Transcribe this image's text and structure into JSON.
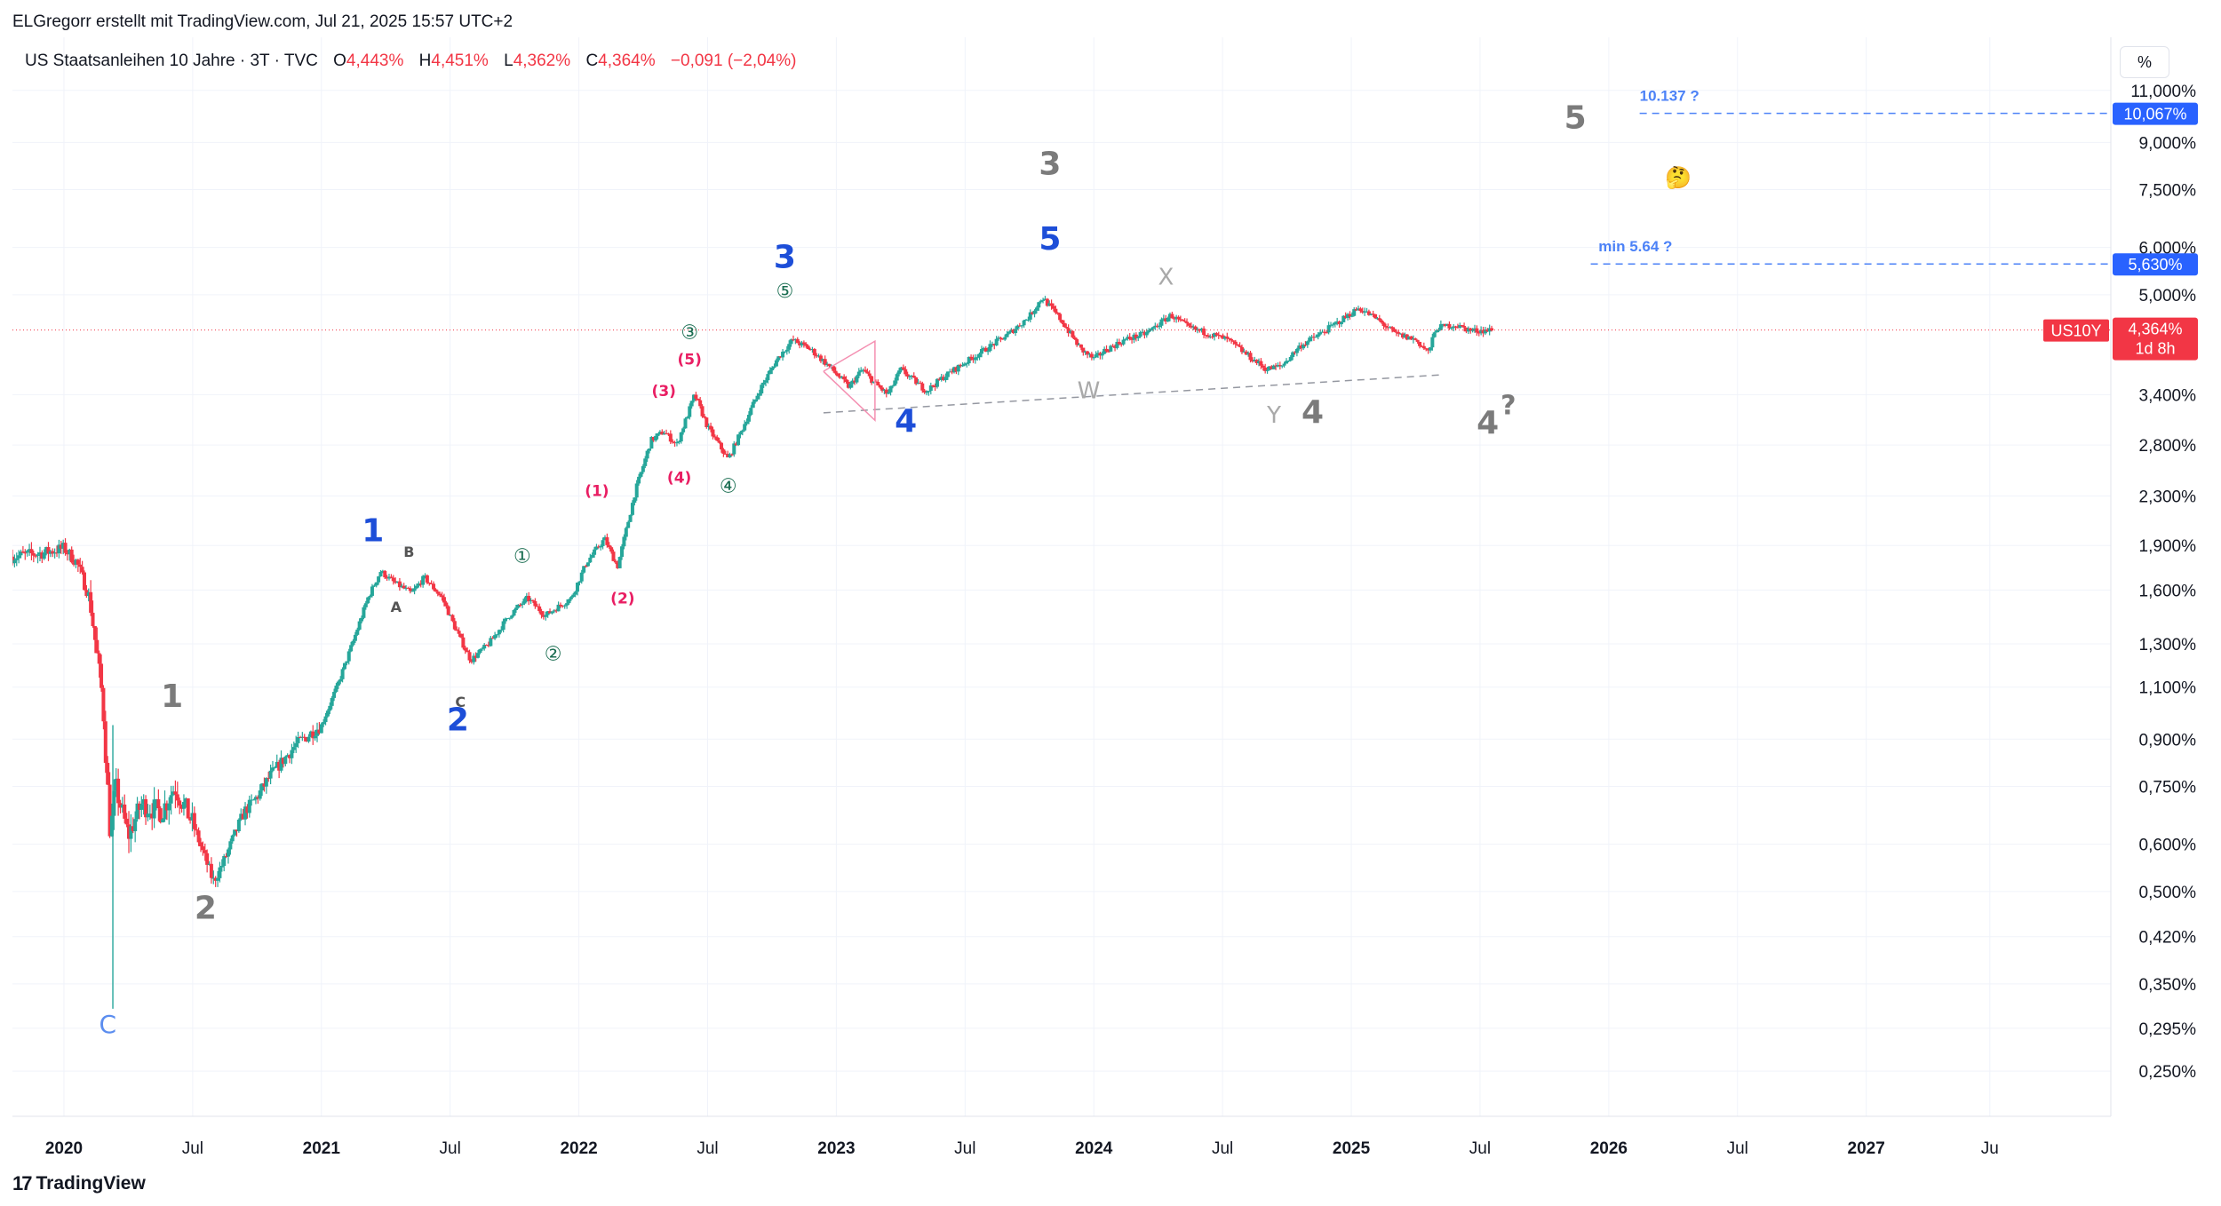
{
  "header": {
    "author_line": "ELGregorr erstellt mit TradingView.com, Jul 21, 2025 15:57 UTC+2"
  },
  "legend": {
    "symbol_title": "US Staatsanleihen 10 Jahre · 3T · TVC",
    "open_label": "O",
    "open_value": "4,443%",
    "high_label": "H",
    "high_value": "4,451%",
    "low_label": "L",
    "low_value": "4,362%",
    "close_label": "C",
    "close_value": "4,364%",
    "change_value": "−0,091 (−2,04%)"
  },
  "scale_button": "%",
  "footer": {
    "brand": "TradingView",
    "logo_glyph": "17"
  },
  "colors": {
    "up": "#26a69a",
    "down": "#f23645",
    "blue_wave": "#1d4ed8",
    "grey_wave": "#7b7b7b",
    "pink_wave": "#e91e63",
    "green_wave": "#1b6e52",
    "dashed_blue": "#4c82f7",
    "price_line": "#f23645"
  },
  "chart_data": {
    "type": "candlestick",
    "symbol": "US10Y",
    "interval": "3T",
    "price_axis": {
      "scale": "log",
      "range": [
        0.21,
        13.5
      ],
      "ticks": [
        "11,000%",
        "9,000%",
        "7,500%",
        "6,000%",
        "5,000%",
        "3,400%",
        "2,800%",
        "2,300%",
        "1,900%",
        "1,600%",
        "1,300%",
        "1,100%",
        "0,900%",
        "0,750%",
        "0,600%",
        "0,500%",
        "0,420%",
        "0,350%",
        "0,295%",
        "0,250%"
      ],
      "tick_values": [
        11.0,
        9.0,
        7.5,
        6.0,
        5.0,
        3.4,
        2.8,
        2.3,
        1.9,
        1.6,
        1.3,
        1.1,
        0.9,
        0.75,
        0.6,
        0.5,
        0.42,
        0.35,
        0.295,
        0.25
      ]
    },
    "time_axis": {
      "range": [
        2019.8,
        2027.95
      ],
      "ticks": [
        {
          "label": "2020",
          "t": 2020.0,
          "bold": true
        },
        {
          "label": "Jul",
          "t": 2020.5,
          "bold": false
        },
        {
          "label": "2021",
          "t": 2021.0,
          "bold": true
        },
        {
          "label": "Jul",
          "t": 2021.5,
          "bold": false
        },
        {
          "label": "2022",
          "t": 2022.0,
          "bold": true
        },
        {
          "label": "Jul",
          "t": 2022.5,
          "bold": false
        },
        {
          "label": "2023",
          "t": 2023.0,
          "bold": true
        },
        {
          "label": "Jul",
          "t": 2023.5,
          "bold": false
        },
        {
          "label": "2024",
          "t": 2024.0,
          "bold": true
        },
        {
          "label": "Jul",
          "t": 2024.5,
          "bold": false
        },
        {
          "label": "2025",
          "t": 2025.0,
          "bold": true
        },
        {
          "label": "Jul",
          "t": 2025.5,
          "bold": false
        },
        {
          "label": "2026",
          "t": 2026.0,
          "bold": true
        },
        {
          "label": "Jul",
          "t": 2026.5,
          "bold": false
        },
        {
          "label": "2027",
          "t": 2027.0,
          "bold": true
        },
        {
          "label": "Ju",
          "t": 2027.48,
          "bold": false
        }
      ]
    },
    "price_path": [
      [
        2019.8,
        1.82
      ],
      [
        2019.93,
        1.85
      ],
      [
        2020.0,
        1.88
      ],
      [
        2020.05,
        1.78
      ],
      [
        2020.1,
        1.55
      ],
      [
        2020.15,
        1.05
      ],
      [
        2020.18,
        0.62
      ],
      [
        2020.2,
        0.75
      ],
      [
        2020.25,
        0.62
      ],
      [
        2020.3,
        0.7
      ],
      [
        2020.38,
        0.68
      ],
      [
        2020.43,
        0.75
      ],
      [
        2020.5,
        0.65
      ],
      [
        2020.58,
        0.52
      ],
      [
        2020.62,
        0.56
      ],
      [
        2020.7,
        0.68
      ],
      [
        2020.75,
        0.72
      ],
      [
        2020.8,
        0.78
      ],
      [
        2020.9,
        0.88
      ],
      [
        2021.0,
        0.95
      ],
      [
        2021.06,
        1.1
      ],
      [
        2021.12,
        1.3
      ],
      [
        2021.18,
        1.55
      ],
      [
        2021.23,
        1.72
      ],
      [
        2021.28,
        1.65
      ],
      [
        2021.35,
        1.58
      ],
      [
        2021.4,
        1.68
      ],
      [
        2021.47,
        1.55
      ],
      [
        2021.52,
        1.38
      ],
      [
        2021.58,
        1.22
      ],
      [
        2021.65,
        1.3
      ],
      [
        2021.73,
        1.45
      ],
      [
        2021.8,
        1.55
      ],
      [
        2021.87,
        1.45
      ],
      [
        2021.92,
        1.5
      ],
      [
        2021.97,
        1.55
      ],
      [
        2022.03,
        1.78
      ],
      [
        2022.1,
        1.95
      ],
      [
        2022.15,
        1.75
      ],
      [
        2022.22,
        2.35
      ],
      [
        2022.28,
        2.85
      ],
      [
        2022.33,
        2.95
      ],
      [
        2022.38,
        2.8
      ],
      [
        2022.45,
        3.4
      ],
      [
        2022.5,
        3.0
      ],
      [
        2022.58,
        2.65
      ],
      [
        2022.63,
        2.95
      ],
      [
        2022.7,
        3.45
      ],
      [
        2022.77,
        3.9
      ],
      [
        2022.83,
        4.2
      ],
      [
        2022.9,
        4.05
      ],
      [
        2022.97,
        3.8
      ],
      [
        2023.05,
        3.5
      ],
      [
        2023.1,
        3.75
      ],
      [
        2023.15,
        3.55
      ],
      [
        2023.2,
        3.4
      ],
      [
        2023.25,
        3.75
      ],
      [
        2023.35,
        3.45
      ],
      [
        2023.42,
        3.65
      ],
      [
        2023.5,
        3.85
      ],
      [
        2023.58,
        4.05
      ],
      [
        2023.67,
        4.3
      ],
      [
        2023.75,
        4.6
      ],
      [
        2023.8,
        4.95
      ],
      [
        2023.87,
        4.55
      ],
      [
        2023.95,
        4.05
      ],
      [
        2024.0,
        3.9
      ],
      [
        2024.05,
        4.05
      ],
      [
        2024.12,
        4.2
      ],
      [
        2024.2,
        4.3
      ],
      [
        2024.3,
        4.62
      ],
      [
        2024.37,
        4.4
      ],
      [
        2024.45,
        4.3
      ],
      [
        2024.52,
        4.2
      ],
      [
        2024.6,
        3.95
      ],
      [
        2024.67,
        3.75
      ],
      [
        2024.73,
        3.8
      ],
      [
        2024.8,
        4.1
      ],
      [
        2024.88,
        4.3
      ],
      [
        2024.95,
        4.5
      ],
      [
        2025.03,
        4.75
      ],
      [
        2025.1,
        4.55
      ],
      [
        2025.17,
        4.3
      ],
      [
        2025.25,
        4.2
      ],
      [
        2025.3,
        4.0
      ],
      [
        2025.33,
        4.4
      ],
      [
        2025.4,
        4.45
      ],
      [
        2025.47,
        4.35
      ],
      [
        2025.55,
        4.364
      ]
    ],
    "current_price": {
      "label": "US10Y",
      "value": "4,364%",
      "countdown": "1d 8h",
      "y": 4.364
    },
    "levels": [
      {
        "price": 10.067,
        "label": "10,067%",
        "text": "10.137 ?",
        "t_start": 2026.12,
        "text_t": 2026.12
      },
      {
        "price": 5.63,
        "label": "5,630%",
        "text": "min 5.64 ?",
        "t_start": 2025.93,
        "text_t": 2025.96
      }
    ],
    "trendlines": [
      {
        "kind": "dashed-grey",
        "points": [
          [
            2022.95,
            3.17
          ],
          [
            2025.35,
            3.67
          ]
        ]
      },
      {
        "kind": "pink-triangle",
        "points": [
          [
            2022.95,
            3.72
          ],
          [
            2023.15,
            3.08
          ],
          [
            2023.15,
            4.18
          ],
          [
            2022.95,
            3.72
          ]
        ]
      }
    ],
    "wave_labels": [
      {
        "text": "C",
        "t": 2020.17,
        "p": 0.29,
        "style": "lightblue"
      },
      {
        "text": "1",
        "t": 2020.42,
        "p": 1.02,
        "style": "grey"
      },
      {
        "text": "2",
        "t": 2020.55,
        "p": 0.45,
        "style": "grey"
      },
      {
        "text": "1",
        "t": 2021.2,
        "p": 1.93,
        "style": "blue"
      },
      {
        "text": "B",
        "t": 2021.34,
        "p": 1.82,
        "style": "small"
      },
      {
        "text": "A",
        "t": 2021.29,
        "p": 1.47,
        "style": "small"
      },
      {
        "text": "C",
        "t": 2021.54,
        "p": 1.02,
        "style": "small"
      },
      {
        "text": "2",
        "t": 2021.53,
        "p": 0.93,
        "style": "blue"
      },
      {
        "text": "①",
        "t": 2021.78,
        "p": 1.78,
        "style": "green"
      },
      {
        "text": "②",
        "t": 2021.9,
        "p": 1.22,
        "style": "green"
      },
      {
        "text": "(1)",
        "t": 2022.07,
        "p": 2.3,
        "style": "pink"
      },
      {
        "text": "(2)",
        "t": 2022.17,
        "p": 1.52,
        "style": "pink"
      },
      {
        "text": "(3)",
        "t": 2022.33,
        "p": 3.38,
        "style": "pink"
      },
      {
        "text": "(4)",
        "t": 2022.39,
        "p": 2.42,
        "style": "pink"
      },
      {
        "text": "(5)",
        "t": 2022.43,
        "p": 3.82,
        "style": "pink"
      },
      {
        "text": "③",
        "t": 2022.43,
        "p": 4.22,
        "style": "green"
      },
      {
        "text": "④",
        "t": 2022.58,
        "p": 2.33,
        "style": "green"
      },
      {
        "text": "⑤",
        "t": 2022.8,
        "p": 4.95,
        "style": "green"
      },
      {
        "text": "3",
        "t": 2022.8,
        "p": 5.55,
        "style": "blue"
      },
      {
        "text": "4",
        "t": 2023.27,
        "p": 2.95,
        "style": "blue"
      },
      {
        "text": "5",
        "t": 2023.83,
        "p": 5.95,
        "style": "blue"
      },
      {
        "text": "3",
        "t": 2023.83,
        "p": 7.95,
        "style": "grey"
      },
      {
        "text": "W",
        "t": 2023.98,
        "p": 3.35,
        "style": "lightgrey"
      },
      {
        "text": "X",
        "t": 2024.28,
        "p": 5.2,
        "style": "lightgrey"
      },
      {
        "text": "Y",
        "t": 2024.7,
        "p": 3.05,
        "style": "lightgrey"
      },
      {
        "text": "4",
        "t": 2024.85,
        "p": 3.05,
        "style": "grey"
      },
      {
        "text": "4",
        "t": 2025.53,
        "p": 2.93,
        "style": "grey"
      },
      {
        "text": "?",
        "t": 2025.61,
        "p": 3.15,
        "style": "greysmall"
      },
      {
        "text": "5",
        "t": 2025.87,
        "p": 9.5,
        "style": "grey"
      },
      {
        "text": "🤔",
        "t": 2026.27,
        "p": 7.65,
        "style": "emoji"
      }
    ]
  }
}
